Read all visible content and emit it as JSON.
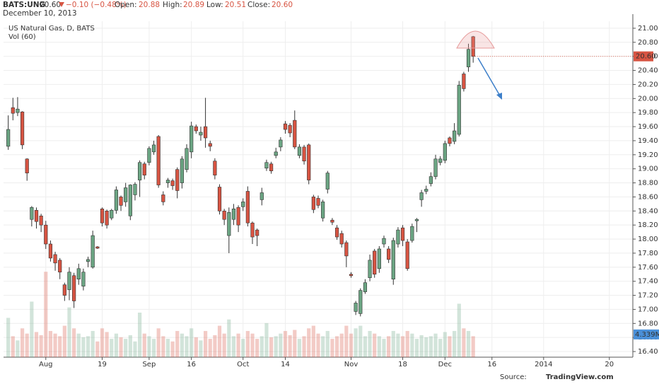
{
  "header": {
    "symbol": "BATS:UNG",
    "price": "20.60",
    "change": "−0.10 (−0.48%)",
    "fields": [
      {
        "label": "Open:",
        "value": "20.88"
      },
      {
        "label": "High:",
        "value": "20.89"
      },
      {
        "label": "Low:",
        "value": "20.51"
      },
      {
        "label": "Close:",
        "value": "20.60"
      }
    ],
    "date": "December 10, 2013"
  },
  "chart_data": {
    "type": "candlestick",
    "title": "US Natural Gas, D, BATS",
    "up_color": "#6ba583",
    "down_color": "#d75442",
    "grid": true,
    "xlim": [
      -1,
      133
    ],
    "xticks": [
      {
        "value": 8,
        "label": "Aug"
      },
      {
        "value": 20,
        "label": "19"
      },
      {
        "value": 30,
        "label": "Sep"
      },
      {
        "value": 39,
        "label": "16"
      },
      {
        "value": 50,
        "label": "Oct"
      },
      {
        "value": 59,
        "label": "14"
      },
      {
        "value": 73,
        "label": "Nov"
      },
      {
        "value": 84,
        "label": "18"
      },
      {
        "value": 93,
        "label": "Dec"
      },
      {
        "value": 103,
        "label": "16"
      },
      {
        "value": 114,
        "label": "2014"
      },
      {
        "value": 128,
        "label": "20"
      }
    ],
    "ylim": [
      16.32,
      21.1
    ],
    "yticks": [
      {
        "value": 16.4,
        "label": "16.40"
      },
      {
        "value": 16.6,
        "label": "16.60"
      },
      {
        "value": 16.8,
        "label": "16.80"
      },
      {
        "value": 17,
        "label": "17.00"
      },
      {
        "value": 17.2,
        "label": "17.20"
      },
      {
        "value": 17.4,
        "label": "17.40"
      },
      {
        "value": 17.6,
        "label": "17.60"
      },
      {
        "value": 17.8,
        "label": "17.80"
      },
      {
        "value": 18,
        "label": "18.00"
      },
      {
        "value": 18.2,
        "label": "18.20"
      },
      {
        "value": 18.4,
        "label": "18.40"
      },
      {
        "value": 18.6,
        "label": "18.60"
      },
      {
        "value": 18.8,
        "label": "18.80"
      },
      {
        "value": 19,
        "label": "19.00"
      },
      {
        "value": 19.2,
        "label": "19.20"
      },
      {
        "value": 19.4,
        "label": "19.40"
      },
      {
        "value": 19.6,
        "label": "19.60"
      },
      {
        "value": 19.8,
        "label": "19.80"
      },
      {
        "value": 20,
        "label": "20.00"
      },
      {
        "value": 20.2,
        "label": "20.20"
      },
      {
        "value": 20.4,
        "label": "20.40"
      },
      {
        "value": 20.6,
        "label": "20.60"
      },
      {
        "value": 20.8,
        "label": "20.80"
      },
      {
        "value": 21,
        "label": "21.00"
      }
    ],
    "ohlc": {
      "open": [
        19.32,
        19.87,
        19.8,
        19.81,
        19.14,
        18.28,
        18.41,
        18.33,
        18.2,
        17.93,
        17.78,
        17.7,
        17.35,
        17.28,
        17.48,
        17.43,
        17.33,
        17.68,
        17.6,
        17.89,
        18.43,
        18.4,
        18.3,
        18.41,
        18.6,
        18.53,
        18.33,
        18.63,
        18.84,
        19.07,
        19.09,
        19.24,
        19.46,
        18.63,
        18.8,
        18.83,
        18.99,
        18.8,
        18.99,
        19.24,
        19.6,
        19.48,
        19.6,
        19.36,
        19.11,
        18.74,
        18.4,
        18.05,
        18.28,
        18.45,
        18.46,
        18.68,
        18.23,
        18.13,
        18.56,
        19.01,
        19.07,
        19.19,
        19.31,
        19.64,
        19.62,
        19.69,
        19.19,
        19.31,
        19.34,
        18.6,
        18.58,
        18.3,
        18.71,
        18.27,
        18.16,
        18.08,
        17.95,
        17.5,
        16.97,
        16.94,
        17.25,
        17.45,
        17.83,
        17.58,
        17.93,
        17.86,
        17.43,
        17.93,
        18.16,
        17.96,
        17.98,
        18.26,
        18.56,
        18.68,
        18.79,
        18.89,
        19.09,
        19.12,
        19.44,
        19.39,
        19.49,
        20.35,
        20.45,
        20.88
      ],
      "high": [
        19.76,
        20.01,
        20.02,
        19.82,
        19.15,
        18.47,
        18.45,
        18.36,
        18.26,
        17.98,
        17.82,
        17.73,
        17.38,
        17.6,
        17.52,
        17.65,
        17.58,
        17.75,
        18.12,
        17.9,
        18.45,
        18.42,
        18.43,
        18.75,
        18.62,
        18.8,
        18.78,
        18.81,
        19.12,
        19.1,
        19.32,
        19.4,
        19.48,
        18.68,
        18.87,
        18.86,
        19.02,
        19.18,
        19.35,
        19.67,
        19.63,
        19.6,
        20.01,
        19.4,
        19.15,
        18.78,
        18.43,
        18.45,
        18.5,
        18.48,
        18.58,
        18.75,
        18.25,
        18.15,
        18.73,
        19.13,
        19.1,
        19.3,
        19.45,
        19.68,
        19.65,
        19.83,
        19.35,
        19.34,
        19.36,
        18.63,
        18.62,
        18.56,
        18.97,
        18.3,
        18.2,
        18.12,
        17.98,
        17.53,
        17.12,
        17.3,
        17.43,
        17.78,
        17.86,
        17.9,
        18.05,
        17.9,
        18.02,
        18.17,
        18.2,
        18.0,
        18.22,
        18.3,
        18.7,
        18.76,
        18.95,
        19.2,
        19.18,
        19.4,
        19.46,
        19.65,
        20.25,
        20.38,
        20.78,
        20.89
      ],
      "low": [
        19.27,
        19.69,
        19.75,
        19.28,
        18.83,
        18.18,
        18.15,
        18.1,
        17.86,
        17.68,
        17.55,
        17.43,
        17.12,
        17.13,
        17.02,
        17.35,
        17.27,
        17.6,
        17.58,
        17.86,
        18.18,
        18.15,
        18.27,
        18.36,
        18.4,
        18.46,
        18.27,
        18.55,
        18.6,
        18.85,
        19.05,
        19.2,
        18.73,
        18.48,
        18.73,
        18.7,
        18.58,
        18.72,
        18.95,
        19.15,
        19.5,
        19.4,
        19.3,
        19.25,
        18.85,
        18.35,
        18.2,
        17.8,
        18.2,
        18.1,
        18.4,
        18.18,
        17.93,
        17.9,
        18.48,
        18.97,
        18.93,
        19.15,
        19.25,
        19.5,
        19.45,
        19.28,
        19.15,
        19.06,
        18.78,
        18.37,
        18.44,
        18.25,
        18.65,
        18.2,
        17.99,
        17.88,
        17.6,
        17.45,
        16.92,
        16.9,
        17.22,
        17.4,
        17.45,
        17.52,
        17.88,
        17.66,
        17.35,
        17.88,
        17.9,
        17.55,
        17.95,
        18.1,
        18.46,
        18.64,
        18.75,
        18.85,
        19.05,
        19.08,
        19.32,
        19.35,
        19.46,
        20.1,
        20.38,
        20.51
      ],
      "close": [
        19.56,
        19.79,
        19.85,
        19.34,
        18.94,
        18.45,
        18.25,
        18.2,
        17.93,
        17.73,
        17.66,
        17.53,
        17.2,
        17.53,
        17.12,
        17.58,
        17.53,
        17.71,
        18.05,
        17.87,
        18.23,
        18.2,
        18.41,
        18.7,
        18.48,
        18.73,
        18.77,
        18.78,
        19.09,
        18.91,
        19.29,
        19.34,
        18.77,
        18.53,
        18.84,
        18.76,
        18.69,
        19.14,
        19.29,
        19.61,
        19.54,
        19.52,
        19.44,
        19.32,
        18.91,
        18.4,
        18.28,
        18.38,
        18.43,
        18.2,
        18.53,
        18.23,
        18.03,
        18.05,
        18.66,
        19.09,
        18.97,
        19.24,
        19.41,
        19.56,
        19.51,
        19.31,
        19.31,
        19.11,
        18.84,
        18.42,
        18.48,
        18.53,
        18.94,
        18.24,
        18.03,
        17.93,
        17.76,
        17.48,
        17.09,
        17.27,
        17.38,
        17.7,
        17.5,
        17.86,
        18.01,
        17.71,
        17.98,
        18.13,
        17.98,
        17.58,
        18.18,
        18.28,
        18.66,
        18.71,
        18.89,
        19.14,
        19.14,
        19.36,
        19.36,
        19.54,
        20.19,
        20.14,
        20.7,
        20.6
      ]
    },
    "last_price": {
      "value": 20.6,
      "label": "20.60"
    },
    "volume": {
      "label": "Vol (60)",
      "ylim": [
        0,
        64.1
      ],
      "values": [
        7.5,
        4.0,
        3.2,
        5.5,
        4.5,
        10.6,
        4.8,
        4.2,
        16.3,
        5.0,
        4.5,
        4.0,
        6.0,
        9.5,
        5.5,
        4.5,
        3.8,
        4.0,
        5.0,
        3.0,
        5.5,
        4.8,
        3.5,
        4.5,
        3.8,
        3.5,
        4.2,
        3.0,
        8.5,
        4.5,
        4.0,
        3.5,
        5.5,
        4.0,
        3.5,
        3.0,
        5.0,
        4.5,
        4.0,
        5.5,
        3.8,
        3.2,
        5.0,
        3.5,
        4.2,
        6.0,
        4.5,
        7.2,
        4.0,
        4.5,
        3.5,
        5.0,
        4.5,
        3.5,
        4.0,
        6.5,
        3.8,
        4.0,
        4.5,
        5.0,
        4.2,
        5.2,
        3.5,
        4.0,
        5.5,
        6.0,
        4.5,
        4.0,
        5.0,
        3.5,
        4.0,
        4.5,
        6.0,
        4.5,
        5.5,
        6.0,
        4.0,
        5.0,
        4.5,
        4.0,
        3.5,
        4.0,
        5.0,
        4.5,
        4.0,
        5.0,
        4.5,
        3.5,
        4.2,
        3.8,
        4.0,
        4.5,
        3.5,
        4.8,
        4.0,
        5.0,
        10.2,
        5.5,
        5.0,
        4.0
      ],
      "ma_label": {
        "value": 4.339,
        "label": "4.339M"
      }
    }
  },
  "source": {
    "prefix": "Source:",
    "name": "TradingView.com"
  }
}
